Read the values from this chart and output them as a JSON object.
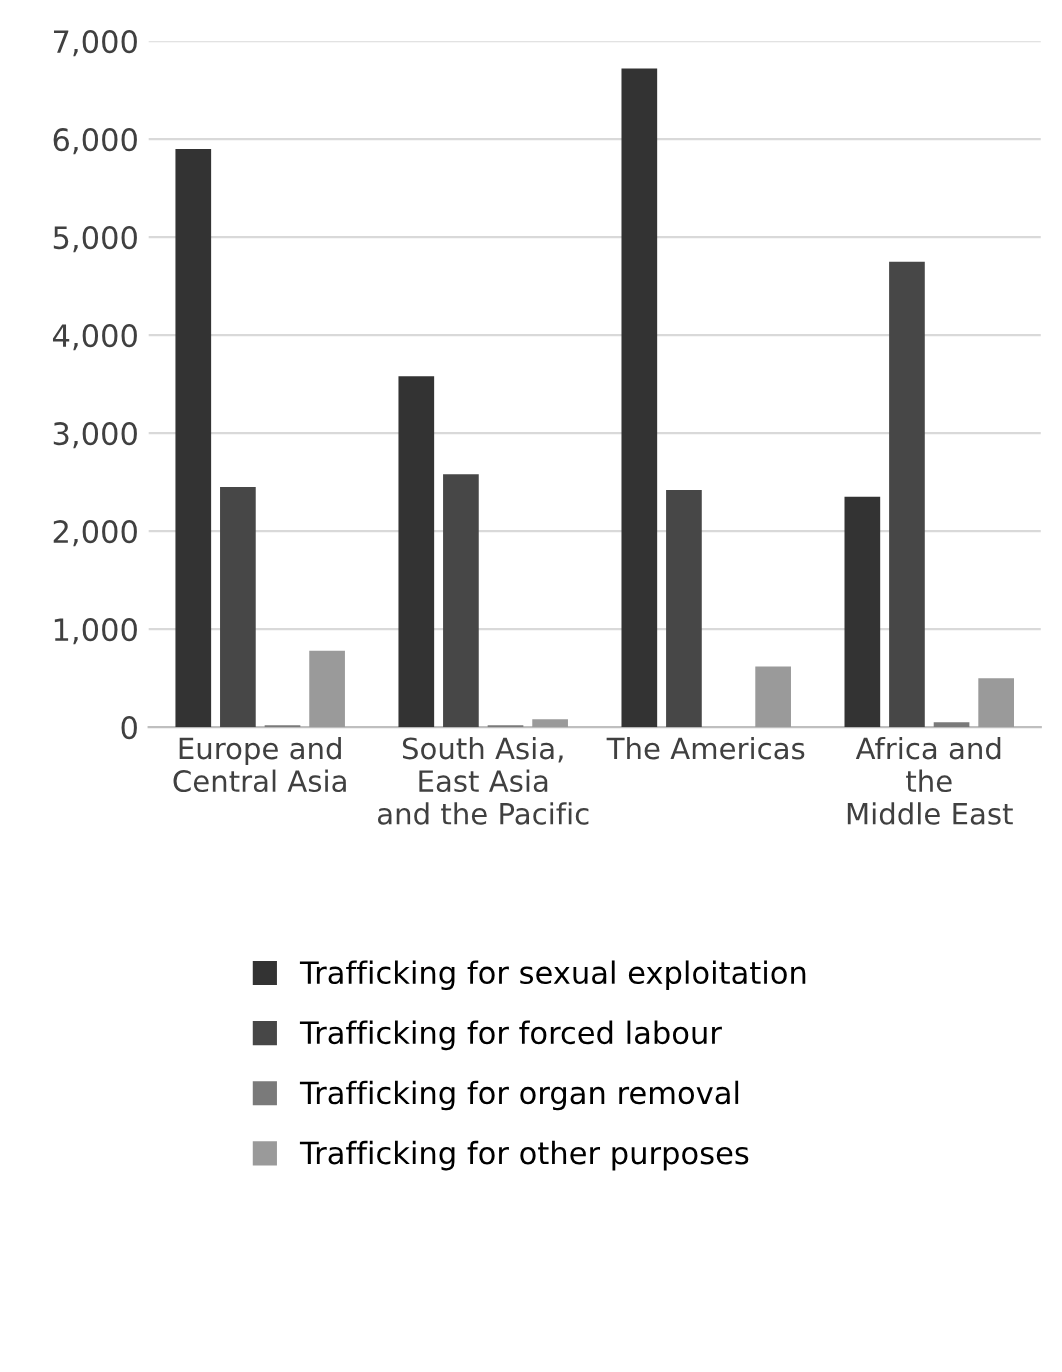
{
  "chart_data": {
    "type": "bar",
    "categories": [
      "Europe and\nCentral Asia",
      "South Asia,\nEast Asia\nand the Pacific",
      "The Americas",
      "Africa and\nthe\nMiddle East"
    ],
    "series": [
      {
        "name": "Trafficking for sexual exploitation",
        "color": "#333333",
        "values": [
          5900,
          3580,
          6720,
          2350
        ]
      },
      {
        "name": "Trafficking for forced labour",
        "color": "#474747",
        "values": [
          2450,
          2580,
          2420,
          4750
        ]
      },
      {
        "name": "Trafficking for organ removal",
        "color": "#7a7a7a",
        "values": [
          20,
          20,
          0,
          50
        ]
      },
      {
        "name": "Trafficking for other purposes",
        "color": "#9a9a9a",
        "values": [
          780,
          80,
          620,
          500
        ]
      }
    ],
    "ylim": [
      0,
      7000
    ],
    "yticks": [
      {
        "value": 0,
        "label": "0"
      },
      {
        "value": 1000,
        "label": "1,000"
      },
      {
        "value": 2000,
        "label": "2,000"
      },
      {
        "value": 3000,
        "label": "3,000"
      },
      {
        "value": 4000,
        "label": "4,000"
      },
      {
        "value": 5000,
        "label": "5,000"
      },
      {
        "value": 6000,
        "label": "6,000"
      },
      {
        "value": 7000,
        "label": "7,000"
      }
    ],
    "grid": "y",
    "legend": "bottom"
  }
}
